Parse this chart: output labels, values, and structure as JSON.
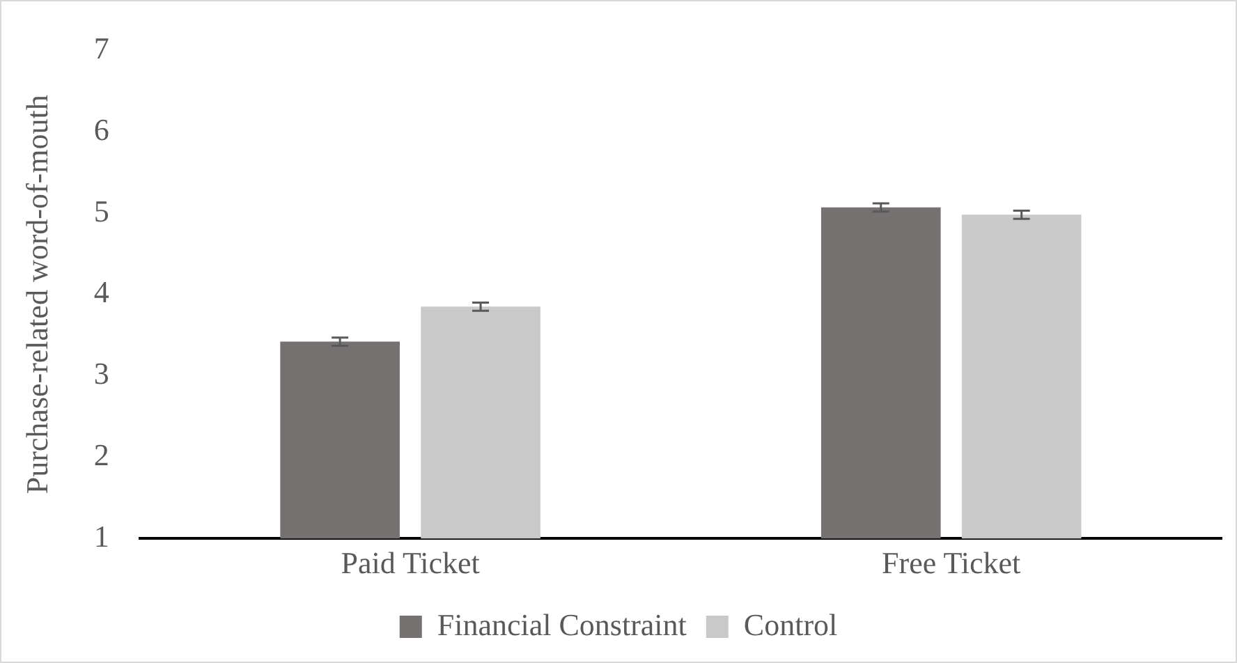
{
  "chart_data": {
    "type": "bar",
    "ylabel": "Purchase-related word-of-mouth",
    "categories": [
      "Paid Ticket",
      "Free Ticket"
    ],
    "series": [
      {
        "name": "Financial Constraint",
        "color": "#767171",
        "values": [
          3.42,
          5.07
        ],
        "errors": [
          0.05,
          0.05
        ]
      },
      {
        "name": "Control",
        "color": "#c9c9c9",
        "values": [
          3.85,
          4.98
        ],
        "errors": [
          0.05,
          0.05
        ]
      }
    ],
    "ylim": [
      1,
      7
    ],
    "yticks": [
      1,
      2,
      3,
      4,
      5,
      6,
      7
    ],
    "grid": false,
    "legend": "bottom"
  }
}
